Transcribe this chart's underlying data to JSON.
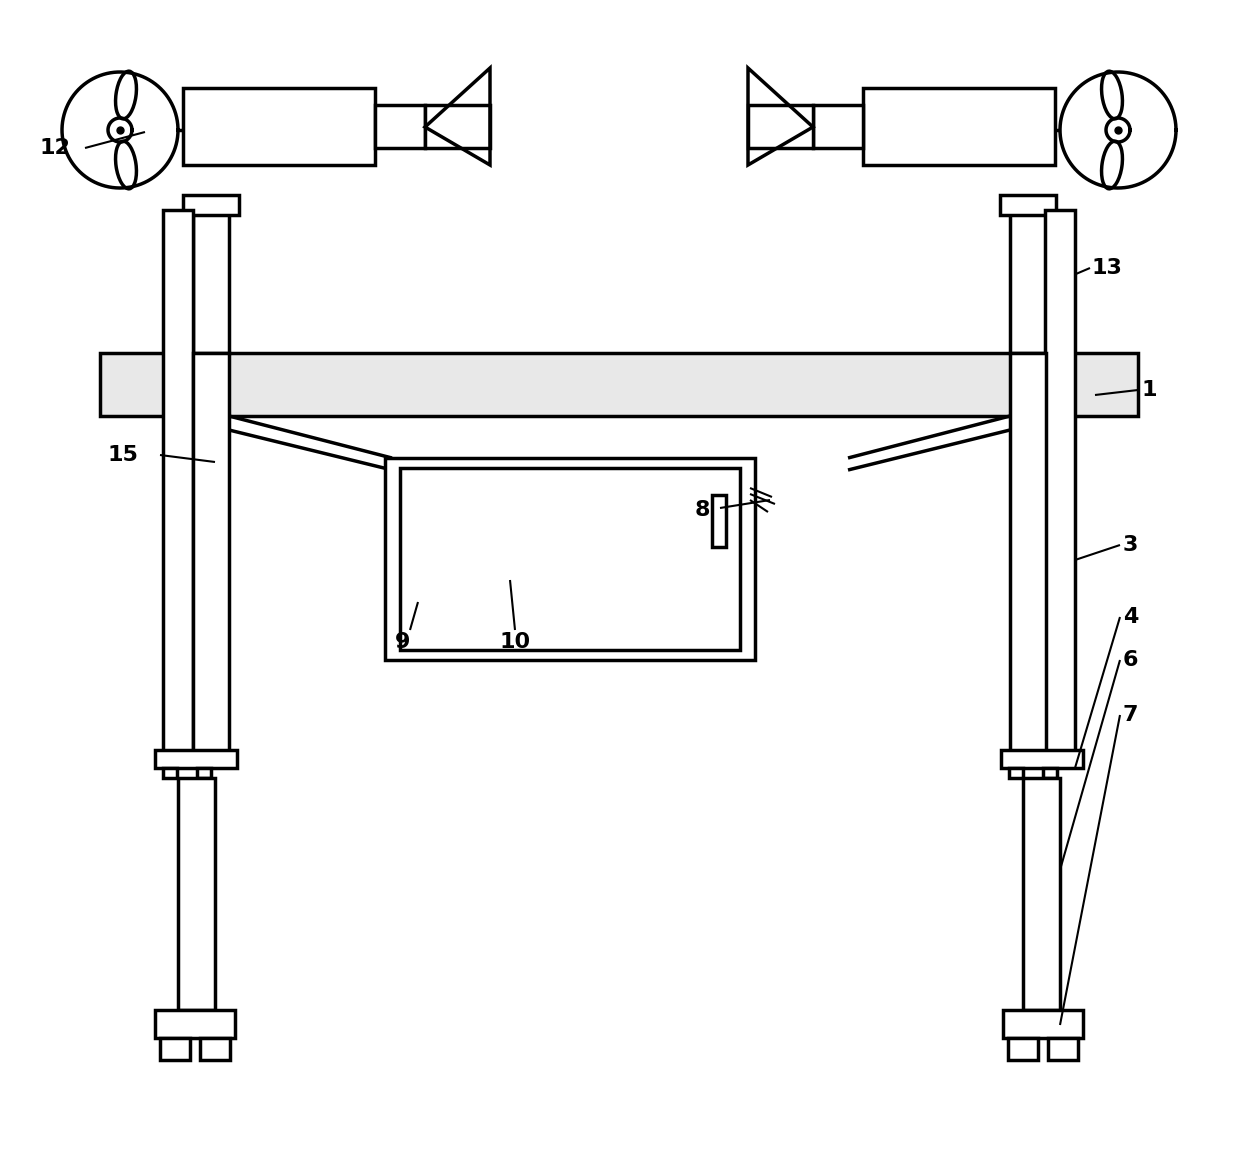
{
  "bg_color": "#ffffff",
  "lc": "#000000",
  "lw": 2.5,
  "tlw": 1.5
}
